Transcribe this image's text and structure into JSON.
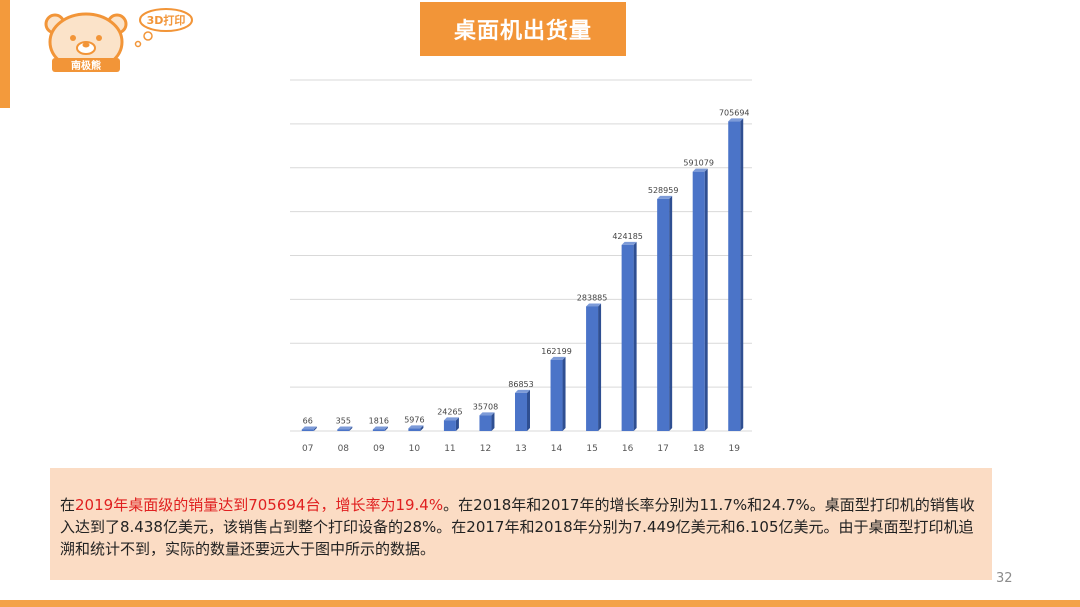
{
  "logo": {
    "badge_text": "3D打印",
    "name_text": "南极熊"
  },
  "header": {
    "title": "桌面机出货量"
  },
  "chart_data": {
    "type": "bar",
    "title": "",
    "xlabel": "",
    "ylabel": "",
    "categories": [
      "07",
      "08",
      "09",
      "10",
      "11",
      "12",
      "13",
      "14",
      "15",
      "16",
      "17",
      "18",
      "19"
    ],
    "values": [
      66,
      355,
      1816,
      5976,
      24265,
      35708,
      86853,
      162199,
      283885,
      424185,
      528959,
      591079,
      705694
    ],
    "ylim": [
      0,
      800000
    ],
    "grid": true,
    "bar_color": "#4b74c8",
    "legend": "none"
  },
  "body_text": {
    "lead": "在",
    "highlight": "2019年桌面级的销量达到705694台，增长率为19.4%",
    "rest": "。在2018年和2017年的增长率分别为11.7%和24.7%。桌面型打印机的销售收入达到了8.438亿美元，该销售占到整个打印设备的28%。在2017年和2018年分别为7.449亿美元和6.105亿美元。由于桌面型打印机追溯和统计不到，实际的数量还要远大于图中所示的数据。"
  },
  "page_number": "32",
  "colors": {
    "accent": "#f29538",
    "text_box": "#fbdcc4",
    "highlight": "#e02020"
  }
}
